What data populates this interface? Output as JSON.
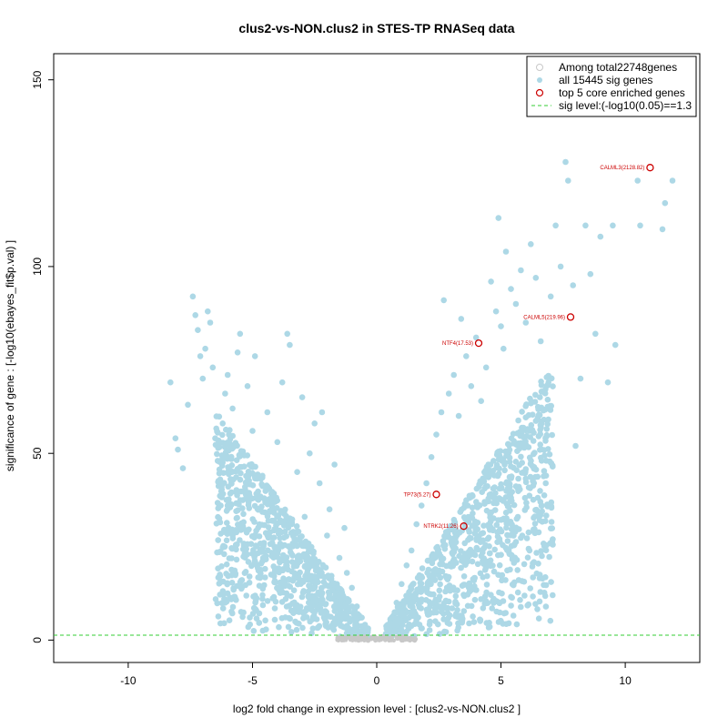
{
  "chart_data": {
    "type": "scatter",
    "title": "clus2-vs-NON.clus2 in STES-TP RNASeq data",
    "xlabel": "log2 fold change in expression level : [clus2-vs-NON.clus2 ]",
    "ylabel": "significance of gene : [-log10(ebayes_fit$p.val) ]",
    "xlim": [
      -13,
      13
    ],
    "ylim": [
      -6,
      157
    ],
    "x_ticks": [
      -10,
      -5,
      0,
      5,
      10
    ],
    "y_ticks": [
      0,
      50,
      100,
      150
    ],
    "x_tick_labels": [
      "-10",
      "-5",
      "0",
      "5",
      "10"
    ],
    "y_tick_labels": [
      "0",
      "50",
      "100",
      "150"
    ],
    "sig_level": 1.3,
    "legend": {
      "position": "top-right",
      "entries": [
        {
          "label": "Among total22748genes",
          "marker": "open-circle",
          "color": "#c8c8c8"
        },
        {
          "label": "all 15445 sig genes",
          "marker": "filled-circle",
          "color": "#add8e6"
        },
        {
          "label": "top 5 core enriched genes",
          "marker": "open-circle",
          "color": "#cc0000"
        },
        {
          "label": "sig level:(-log10(0.05)==1.3",
          "marker": "dashed-line",
          "color": "#33cc33"
        }
      ]
    },
    "colors": {
      "all": "#c8c8c8",
      "sig": "#add8e6",
      "top": "#cc0000",
      "sig_line": "#33cc33"
    },
    "highlighted_genes": [
      {
        "label": "CALML3(2128.82)",
        "x": 11.0,
        "y": 126.5
      },
      {
        "label": "CALML5(219.96)",
        "x": 7.8,
        "y": 86.5
      },
      {
        "label": "NTF4(17.53)",
        "x": 4.1,
        "y": 79.5
      },
      {
        "label": "TP73(5.27)",
        "x": 2.4,
        "y": 39.0
      },
      {
        "label": "NTRK2(11.26)",
        "x": 3.5,
        "y": 30.5
      }
    ],
    "scatter_points": [
      [
        -8.3,
        69
      ],
      [
        -8.1,
        54
      ],
      [
        -8.0,
        51
      ],
      [
        -7.8,
        46
      ],
      [
        -7.6,
        63
      ],
      [
        -7.4,
        92
      ],
      [
        -7.3,
        87
      ],
      [
        -7.2,
        83
      ],
      [
        -7.1,
        76
      ],
      [
        -7.0,
        70
      ],
      [
        -6.9,
        78
      ],
      [
        -6.8,
        88
      ],
      [
        -6.7,
        85
      ],
      [
        -6.6,
        73
      ],
      [
        -6.5,
        54
      ],
      [
        -6.4,
        48
      ],
      [
        -6.3,
        43
      ],
      [
        -6.2,
        58
      ],
      [
        -6.1,
        66
      ],
      [
        -6.0,
        71
      ],
      [
        -5.9,
        52
      ],
      [
        -5.8,
        62
      ],
      [
        -5.6,
        77
      ],
      [
        -5.5,
        82
      ],
      [
        -5.3,
        41
      ],
      [
        -5.2,
        68
      ],
      [
        -5.0,
        56
      ],
      [
        -4.9,
        76
      ],
      [
        -4.6,
        44
      ],
      [
        -4.4,
        61
      ],
      [
        -4.2,
        38
      ],
      [
        -4.0,
        53
      ],
      [
        -3.8,
        69
      ],
      [
        -3.6,
        82
      ],
      [
        -3.5,
        79
      ],
      [
        -3.2,
        45
      ],
      [
        -3.0,
        65
      ],
      [
        -2.9,
        33
      ],
      [
        -2.7,
        50
      ],
      [
        -2.5,
        58
      ],
      [
        -2.3,
        42
      ],
      [
        -2.2,
        61
      ],
      [
        -2.0,
        28
      ],
      [
        -1.9,
        35
      ],
      [
        -1.7,
        47
      ],
      [
        -1.5,
        22
      ],
      [
        -1.3,
        30
      ],
      [
        -1.2,
        18
      ],
      [
        -1.0,
        14
      ],
      [
        -0.8,
        9
      ],
      [
        -0.6,
        6
      ],
      [
        -0.4,
        3
      ],
      [
        0.4,
        3
      ],
      [
        0.6,
        6
      ],
      [
        0.8,
        10
      ],
      [
        1.0,
        15
      ],
      [
        1.2,
        20
      ],
      [
        1.4,
        24
      ],
      [
        1.6,
        31
      ],
      [
        1.8,
        36
      ],
      [
        2.0,
        42
      ],
      [
        2.2,
        49
      ],
      [
        2.4,
        55
      ],
      [
        2.6,
        61
      ],
      [
        2.7,
        91
      ],
      [
        2.9,
        66
      ],
      [
        3.1,
        71
      ],
      [
        3.3,
        60
      ],
      [
        3.4,
        86
      ],
      [
        3.6,
        76
      ],
      [
        3.8,
        68
      ],
      [
        4.0,
        81
      ],
      [
        4.2,
        64
      ],
      [
        4.4,
        73
      ],
      [
        4.6,
        96
      ],
      [
        4.8,
        88
      ],
      [
        4.9,
        113
      ],
      [
        5.0,
        84
      ],
      [
        5.1,
        78
      ],
      [
        5.2,
        104
      ],
      [
        5.4,
        94
      ],
      [
        5.6,
        90
      ],
      [
        5.8,
        99
      ],
      [
        6.0,
        85
      ],
      [
        6.2,
        106
      ],
      [
        6.4,
        97
      ],
      [
        6.6,
        80
      ],
      [
        6.8,
        42
      ],
      [
        7.0,
        92
      ],
      [
        7.2,
        111
      ],
      [
        7.4,
        100
      ],
      [
        7.6,
        128
      ],
      [
        7.7,
        123
      ],
      [
        7.9,
        95
      ],
      [
        8.0,
        52
      ],
      [
        8.2,
        70
      ],
      [
        8.4,
        111
      ],
      [
        8.6,
        98
      ],
      [
        8.8,
        82
      ],
      [
        9.0,
        108
      ],
      [
        9.3,
        69
      ],
      [
        9.5,
        111
      ],
      [
        9.6,
        79
      ],
      [
        10.5,
        123
      ],
      [
        10.6,
        111
      ],
      [
        11.5,
        110
      ],
      [
        11.6,
        117
      ],
      [
        11.9,
        123
      ]
    ]
  }
}
